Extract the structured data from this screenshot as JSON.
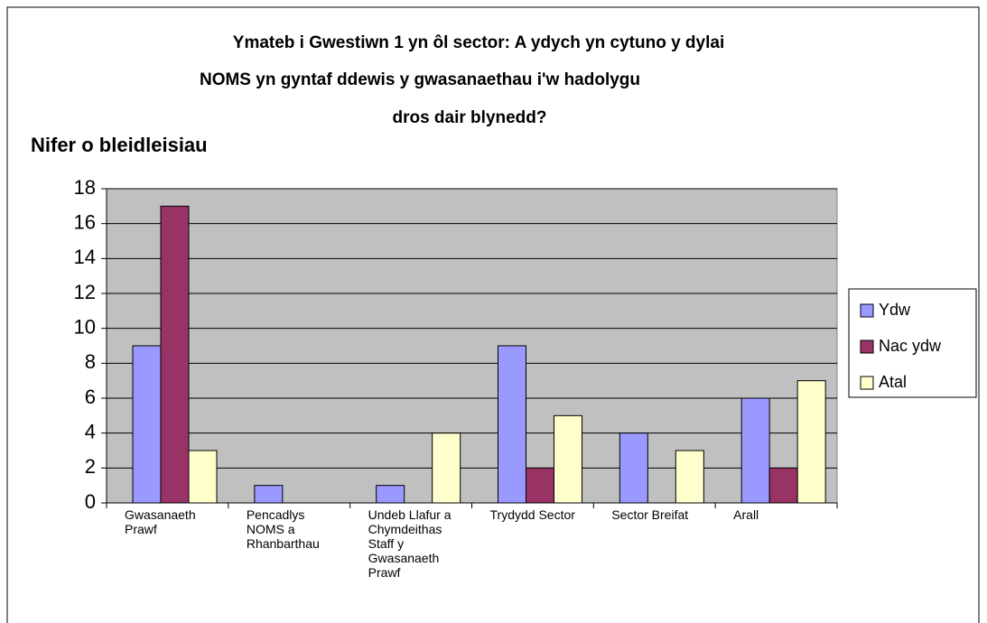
{
  "chart_data": {
    "type": "bar",
    "title": [
      "Ymateb i Gwestiwn 1 yn ôl sector: A ydych yn cytuno y dylai",
      "NOMS yn gyntaf ddewis y gwasanaethau i'w hadolygu",
      "dros dair blynedd?"
    ],
    "y_label": "Nifer o bleidleisiau",
    "categories": [
      "Gwasanaeth Prawf",
      "Pencadlys NOMS a Rhanbarthau",
      "Undeb Llafur a Chymdeithas Staff y Gwasanaeth Prawf",
      "Trydydd Sector",
      "Sector Breifat",
      "Arall"
    ],
    "series": [
      {
        "name": "Ydw",
        "color": "#9999ff",
        "values": [
          9,
          1,
          1,
          9,
          4,
          6
        ]
      },
      {
        "name": "Nac ydw",
        "color": "#993366",
        "values": [
          17,
          0,
          0,
          2,
          0,
          2
        ]
      },
      {
        "name": "Atal",
        "color": "#ffffcc",
        "values": [
          3,
          0,
          4,
          5,
          3,
          7
        ]
      }
    ],
    "ylim": [
      0,
      18
    ],
    "yticks": [
      0,
      2,
      4,
      6,
      8,
      10,
      12,
      14,
      16,
      18
    ],
    "grid": true,
    "legend": "right"
  }
}
